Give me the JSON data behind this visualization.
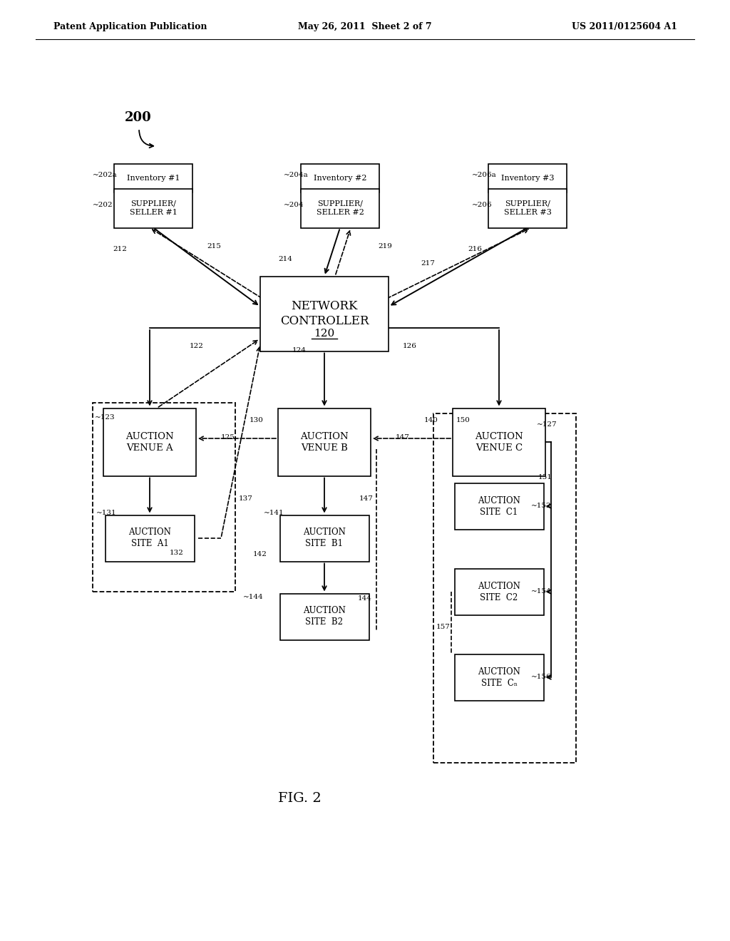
{
  "bg_color": "#ffffff",
  "header_left": "Patent Application Publication",
  "header_mid": "May 26, 2011  Sheet 2 of 7",
  "header_right": "US 2011/0125604 A1",
  "fig_label": "FIG. 2"
}
